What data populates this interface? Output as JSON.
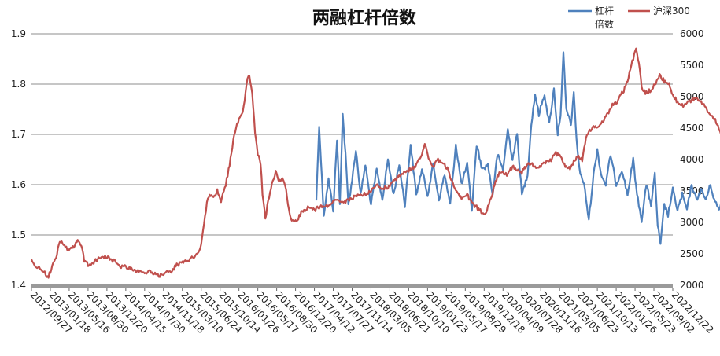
{
  "chart_data": {
    "type": "line",
    "title": "两融杠杆倍数",
    "grid": true,
    "legend_position": "top-right",
    "y_left": {
      "min": 1.4,
      "max": 1.9,
      "ticks": [
        "1.4",
        "1.5",
        "1.6",
        "1.7",
        "1.8",
        "1.9"
      ]
    },
    "y_right": {
      "min": 2000,
      "max": 6000,
      "ticks": [
        "2000",
        "2500",
        "3000",
        "3500",
        "4000",
        "4500",
        "5000",
        "5500",
        "6000"
      ]
    },
    "x_ticks": [
      "2012/09/27",
      "2013/01/18",
      "2013/05/16",
      "2013/08/30",
      "2013/12/20",
      "2014/04/15",
      "2014/07/30",
      "2014/11/18",
      "2015/03/10",
      "2015/06/24",
      "2015/10/14",
      "2016/01/26",
      "2016/05/17",
      "2016/08/30",
      "2016/12/20",
      "2017/04/12",
      "2017/07/27",
      "2017/11/14",
      "2018/03/05",
      "2018/06/21",
      "2018/10/10",
      "2019/01/23",
      "2019/05/17",
      "2019/08/29",
      "2019/12/18",
      "2020/04/09",
      "2020/07/28",
      "2020/11/16",
      "2021/03/05",
      "2021/06/23",
      "2021/10/13",
      "2022/01/26",
      "2022/05/23",
      "2022/09/02",
      "2022/12/22"
    ],
    "series": [
      {
        "name": "杠杆倍数",
        "axis": "left",
        "color": "#4F81BD",
        "points": [
          [
            15.1,
            1.57
          ],
          [
            15.25,
            1.72
          ],
          [
            15.5,
            1.54
          ],
          [
            15.75,
            1.61
          ],
          [
            16.0,
            1.55
          ],
          [
            16.2,
            1.69
          ],
          [
            16.35,
            1.56
          ],
          [
            16.5,
            1.74
          ],
          [
            16.65,
            1.66
          ],
          [
            16.8,
            1.56
          ],
          [
            17.0,
            1.61
          ],
          [
            17.2,
            1.67
          ],
          [
            17.45,
            1.58
          ],
          [
            17.7,
            1.64
          ],
          [
            18.0,
            1.56
          ],
          [
            18.3,
            1.63
          ],
          [
            18.6,
            1.57
          ],
          [
            18.9,
            1.65
          ],
          [
            19.2,
            1.58
          ],
          [
            19.5,
            1.64
          ],
          [
            19.8,
            1.56
          ],
          [
            20.1,
            1.68
          ],
          [
            20.4,
            1.58
          ],
          [
            20.7,
            1.63
          ],
          [
            21.0,
            1.58
          ],
          [
            21.3,
            1.64
          ],
          [
            21.6,
            1.57
          ],
          [
            21.9,
            1.62
          ],
          [
            22.2,
            1.56
          ],
          [
            22.5,
            1.68
          ],
          [
            22.8,
            1.6
          ],
          [
            23.1,
            1.64
          ],
          [
            23.35,
            1.55
          ],
          [
            23.6,
            1.68
          ],
          [
            23.9,
            1.63
          ],
          [
            24.2,
            1.64
          ],
          [
            24.45,
            1.58
          ],
          [
            24.7,
            1.66
          ],
          [
            25.0,
            1.63
          ],
          [
            25.25,
            1.71
          ],
          [
            25.5,
            1.65
          ],
          [
            25.75,
            1.7
          ],
          [
            26.0,
            1.58
          ],
          [
            26.3,
            1.62
          ],
          [
            26.5,
            1.72
          ],
          [
            26.7,
            1.78
          ],
          [
            26.9,
            1.74
          ],
          [
            27.2,
            1.78
          ],
          [
            27.45,
            1.72
          ],
          [
            27.7,
            1.79
          ],
          [
            27.9,
            1.7
          ],
          [
            28.05,
            1.74
          ],
          [
            28.2,
            1.86
          ],
          [
            28.35,
            1.75
          ],
          [
            28.6,
            1.72
          ],
          [
            28.75,
            1.78
          ],
          [
            28.9,
            1.69
          ],
          [
            29.05,
            1.63
          ],
          [
            29.3,
            1.6
          ],
          [
            29.55,
            1.53
          ],
          [
            29.8,
            1.62
          ],
          [
            30.0,
            1.67
          ],
          [
            30.2,
            1.62
          ],
          [
            30.45,
            1.6
          ],
          [
            30.7,
            1.66
          ],
          [
            31.0,
            1.6
          ],
          [
            31.3,
            1.63
          ],
          [
            31.6,
            1.58
          ],
          [
            31.9,
            1.65
          ],
          [
            32.1,
            1.58
          ],
          [
            32.35,
            1.53
          ],
          [
            32.6,
            1.6
          ],
          [
            32.85,
            1.56
          ],
          [
            33.05,
            1.62
          ],
          [
            33.2,
            1.52
          ],
          [
            33.35,
            1.48
          ],
          [
            33.55,
            1.56
          ],
          [
            33.75,
            1.54
          ],
          [
            34.0,
            1.59
          ],
          [
            34.25,
            1.55
          ],
          [
            34.5,
            1.58
          ],
          [
            34.75,
            1.55
          ],
          [
            35.0,
            1.6
          ],
          [
            35.25,
            1.57
          ],
          [
            35.5,
            1.59
          ],
          [
            35.75,
            1.57
          ],
          [
            36.0,
            1.6
          ],
          [
            36.2,
            1.57
          ],
          [
            36.45,
            1.55
          ],
          [
            36.7,
            1.58
          ],
          [
            36.95,
            1.53
          ],
          [
            37.2,
            1.59
          ],
          [
            37.45,
            1.54
          ],
          [
            37.65,
            1.56
          ],
          [
            37.9,
            1.6
          ],
          [
            38.1,
            1.55
          ],
          [
            38.3,
            1.58
          ],
          [
            38.55,
            1.68
          ],
          [
            38.75,
            1.74
          ],
          [
            38.95,
            1.65
          ],
          [
            39.15,
            1.6
          ],
          [
            39.35,
            1.57
          ],
          [
            39.55,
            1.55
          ],
          [
            39.8,
            1.6
          ],
          [
            40.0,
            1.55
          ],
          [
            40.25,
            1.63
          ],
          [
            40.5,
            1.61
          ],
          [
            40.7,
            1.67
          ],
          [
            40.9,
            1.55
          ],
          [
            41.1,
            1.56
          ],
          [
            41.3,
            1.54
          ],
          [
            41.5,
            1.57
          ]
        ]
      },
      {
        "name": "沪深300",
        "axis": "right",
        "color": "#C0504D",
        "points": [
          [
            0.0,
            2380
          ],
          [
            0.3,
            2300
          ],
          [
            0.55,
            2250
          ],
          [
            0.75,
            2170
          ],
          [
            0.9,
            2140
          ],
          [
            1.05,
            2260
          ],
          [
            1.3,
            2450
          ],
          [
            1.5,
            2700
          ],
          [
            1.7,
            2650
          ],
          [
            1.95,
            2570
          ],
          [
            2.2,
            2610
          ],
          [
            2.45,
            2700
          ],
          [
            2.65,
            2640
          ],
          [
            2.8,
            2400
          ],
          [
            3.0,
            2330
          ],
          [
            3.25,
            2350
          ],
          [
            3.55,
            2430
          ],
          [
            3.85,
            2460
          ],
          [
            4.15,
            2420
          ],
          [
            4.45,
            2380
          ],
          [
            4.75,
            2300
          ],
          [
            5.0,
            2290
          ],
          [
            5.3,
            2260
          ],
          [
            5.6,
            2220
          ],
          [
            5.9,
            2200
          ],
          [
            6.2,
            2220
          ],
          [
            6.5,
            2180
          ],
          [
            6.8,
            2160
          ],
          [
            7.1,
            2200
          ],
          [
            7.4,
            2210
          ],
          [
            7.7,
            2330
          ],
          [
            8.0,
            2350
          ],
          [
            8.3,
            2400
          ],
          [
            8.6,
            2450
          ],
          [
            8.85,
            2500
          ],
          [
            9.0,
            2650
          ],
          [
            9.15,
            3000
          ],
          [
            9.3,
            3300
          ],
          [
            9.45,
            3450
          ],
          [
            9.65,
            3400
          ],
          [
            9.85,
            3500
          ],
          [
            10.05,
            3350
          ],
          [
            10.3,
            3600
          ],
          [
            10.55,
            4000
          ],
          [
            10.75,
            4400
          ],
          [
            10.95,
            4600
          ],
          [
            11.15,
            4700
          ],
          [
            11.3,
            4950
          ],
          [
            11.45,
            5300
          ],
          [
            11.55,
            5350
          ],
          [
            11.7,
            5050
          ],
          [
            11.85,
            4450
          ],
          [
            12.0,
            4100
          ],
          [
            12.15,
            3950
          ],
          [
            12.25,
            3450
          ],
          [
            12.4,
            3050
          ],
          [
            12.55,
            3350
          ],
          [
            12.75,
            3600
          ],
          [
            12.95,
            3800
          ],
          [
            13.15,
            3650
          ],
          [
            13.35,
            3700
          ],
          [
            13.5,
            3500
          ],
          [
            13.7,
            3100
          ],
          [
            13.9,
            3000
          ],
          [
            14.1,
            3050
          ],
          [
            14.3,
            3150
          ],
          [
            14.5,
            3200
          ],
          [
            14.75,
            3250
          ],
          [
            15.0,
            3200
          ],
          [
            15.3,
            3250
          ],
          [
            15.6,
            3250
          ],
          [
            15.9,
            3300
          ],
          [
            16.2,
            3350
          ],
          [
            16.5,
            3300
          ],
          [
            16.8,
            3350
          ],
          [
            17.1,
            3400
          ],
          [
            17.4,
            3450
          ],
          [
            17.7,
            3450
          ],
          [
            18.0,
            3500
          ],
          [
            18.3,
            3600
          ],
          [
            18.6,
            3550
          ],
          [
            18.9,
            3550
          ],
          [
            19.2,
            3650
          ],
          [
            19.5,
            3750
          ],
          [
            19.8,
            3800
          ],
          [
            20.1,
            3850
          ],
          [
            20.4,
            3900
          ],
          [
            20.65,
            4050
          ],
          [
            20.85,
            4250
          ],
          [
            21.05,
            4000
          ],
          [
            21.3,
            3900
          ],
          [
            21.55,
            4000
          ],
          [
            21.8,
            3950
          ],
          [
            22.05,
            3850
          ],
          [
            22.3,
            3650
          ],
          [
            22.55,
            3500
          ],
          [
            22.8,
            3400
          ],
          [
            23.05,
            3450
          ],
          [
            23.3,
            3350
          ],
          [
            23.55,
            3250
          ],
          [
            23.8,
            3200
          ],
          [
            24.0,
            3100
          ],
          [
            24.2,
            3250
          ],
          [
            24.4,
            3400
          ],
          [
            24.6,
            3650
          ],
          [
            24.8,
            3800
          ],
          [
            25.0,
            3800
          ],
          [
            25.25,
            3750
          ],
          [
            25.5,
            3900
          ],
          [
            25.75,
            3850
          ],
          [
            26.0,
            3800
          ],
          [
            26.25,
            3900
          ],
          [
            26.5,
            3950
          ],
          [
            26.75,
            3850
          ],
          [
            27.0,
            3900
          ],
          [
            27.3,
            3950
          ],
          [
            27.55,
            4000
          ],
          [
            27.8,
            4100
          ],
          [
            28.05,
            4050
          ],
          [
            28.3,
            3900
          ],
          [
            28.55,
            3850
          ],
          [
            28.8,
            4000
          ],
          [
            29.0,
            4050
          ],
          [
            29.2,
            4000
          ],
          [
            29.4,
            4350
          ],
          [
            29.6,
            4450
          ],
          [
            29.8,
            4550
          ],
          [
            30.0,
            4500
          ],
          [
            30.25,
            4600
          ],
          [
            30.5,
            4700
          ],
          [
            30.75,
            4850
          ],
          [
            31.0,
            4900
          ],
          [
            31.2,
            5000
          ],
          [
            31.4,
            5100
          ],
          [
            31.6,
            5250
          ],
          [
            31.75,
            5450
          ],
          [
            31.9,
            5600
          ],
          [
            32.05,
            5750
          ],
          [
            32.2,
            5550
          ],
          [
            32.35,
            5150
          ],
          [
            32.55,
            5050
          ],
          [
            32.8,
            5100
          ],
          [
            33.05,
            5200
          ],
          [
            33.3,
            5350
          ],
          [
            33.55,
            5250
          ],
          [
            33.8,
            5200
          ],
          [
            34.05,
            5000
          ],
          [
            34.3,
            4900
          ],
          [
            34.55,
            4850
          ],
          [
            34.8,
            4900
          ],
          [
            35.05,
            4950
          ],
          [
            35.3,
            4950
          ],
          [
            35.55,
            4900
          ],
          [
            35.8,
            4800
          ],
          [
            36.05,
            4700
          ],
          [
            36.3,
            4600
          ],
          [
            36.55,
            4400
          ],
          [
            36.7,
            4200
          ],
          [
            36.85,
            4000
          ],
          [
            37.0,
            3800
          ],
          [
            37.2,
            3900
          ],
          [
            37.45,
            4000
          ],
          [
            37.7,
            4200
          ],
          [
            37.95,
            4100
          ],
          [
            38.2,
            4000
          ],
          [
            38.45,
            3900
          ],
          [
            38.7,
            3800
          ],
          [
            38.95,
            3850
          ],
          [
            39.2,
            3700
          ],
          [
            39.45,
            3850
          ],
          [
            39.7,
            3950
          ],
          [
            39.95,
            4050
          ],
          [
            40.2,
            4100
          ],
          [
            40.45,
            4000
          ],
          [
            40.7,
            4150
          ],
          [
            40.95,
            4100
          ],
          [
            41.2,
            4050
          ],
          [
            41.5,
            4080
          ]
        ]
      }
    ]
  }
}
